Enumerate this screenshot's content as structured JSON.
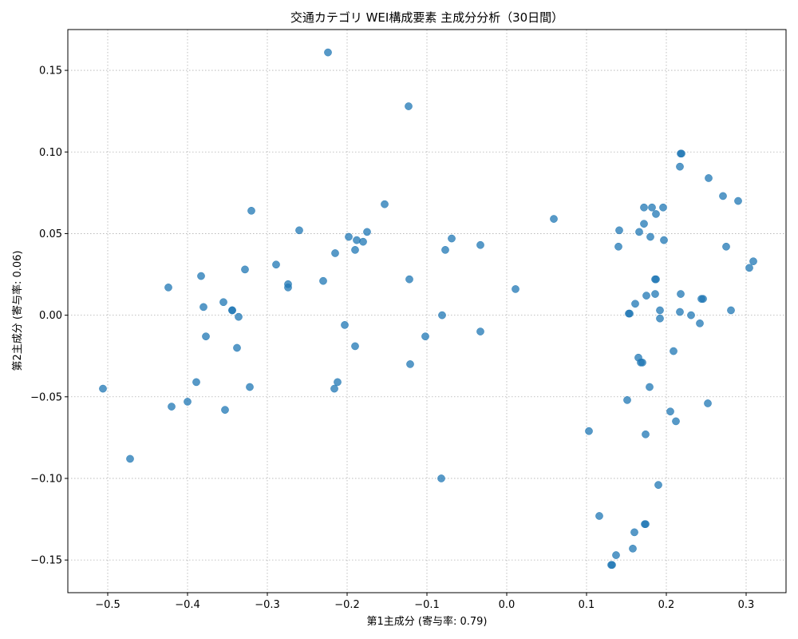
{
  "chart_data": {
    "type": "scatter",
    "title": "交通カテゴリ WEI構成要素 主成分分析（30日間）",
    "xlabel": "第1主成分 (寄与率: 0.79)",
    "ylabel": "第2主成分 (寄与率: 0.06)",
    "xlim": [
      -0.55,
      0.35
    ],
    "ylim": [
      -0.17,
      0.175
    ],
    "x_ticks": [
      -0.5,
      -0.4,
      -0.3,
      -0.2,
      -0.1,
      0.0,
      0.1,
      0.2,
      0.3
    ],
    "x_tick_labels": [
      "−0.5",
      "−0.4",
      "−0.3",
      "−0.2",
      "−0.1",
      "0.0",
      "0.1",
      "0.2",
      "0.3"
    ],
    "y_ticks": [
      -0.15,
      -0.1,
      -0.05,
      0.0,
      0.05,
      0.1,
      0.15
    ],
    "y_tick_labels": [
      "−0.15",
      "−0.10",
      "−0.05",
      "0.00",
      "0.05",
      "0.10",
      "0.15"
    ],
    "grid": true,
    "marker_color": "#1f77b4",
    "points": [
      [
        -0.224,
        0.161
      ],
      [
        -0.123,
        0.128
      ],
      [
        -0.32,
        0.064
      ],
      [
        -0.26,
        0.052
      ],
      [
        -0.289,
        0.031
      ],
      [
        -0.328,
        0.028
      ],
      [
        -0.383,
        0.024
      ],
      [
        -0.424,
        0.017
      ],
      [
        -0.274,
        0.019
      ],
      [
        -0.274,
        0.017
      ],
      [
        -0.23,
        0.021
      ],
      [
        -0.355,
        0.008
      ],
      [
        -0.38,
        0.005
      ],
      [
        -0.344,
        0.003
      ],
      [
        -0.344,
        0.003
      ],
      [
        -0.336,
        -0.001
      ],
      [
        -0.377,
        -0.013
      ],
      [
        -0.338,
        -0.02
      ],
      [
        -0.389,
        -0.041
      ],
      [
        -0.322,
        -0.044
      ],
      [
        -0.4,
        -0.053
      ],
      [
        -0.42,
        -0.056
      ],
      [
        -0.353,
        -0.058
      ],
      [
        -0.506,
        -0.045
      ],
      [
        -0.472,
        -0.088
      ],
      [
        -0.198,
        0.048
      ],
      [
        -0.188,
        0.046
      ],
      [
        -0.18,
        0.045
      ],
      [
        -0.175,
        0.051
      ],
      [
        -0.215,
        0.038
      ],
      [
        -0.19,
        0.04
      ],
      [
        -0.153,
        0.068
      ],
      [
        -0.122,
        0.022
      ],
      [
        -0.203,
        -0.006
      ],
      [
        -0.19,
        -0.019
      ],
      [
        -0.212,
        -0.041
      ],
      [
        -0.216,
        -0.045
      ],
      [
        -0.121,
        -0.03
      ],
      [
        -0.102,
        -0.013
      ],
      [
        -0.081,
        0.0
      ],
      [
        -0.077,
        0.04
      ],
      [
        -0.069,
        0.047
      ],
      [
        -0.033,
        0.043
      ],
      [
        -0.033,
        -0.01
      ],
      [
        -0.082,
        -0.1
      ],
      [
        0.011,
        0.016
      ],
      [
        0.059,
        0.059
      ],
      [
        0.103,
        -0.071
      ],
      [
        0.116,
        -0.123
      ],
      [
        0.131,
        -0.153
      ],
      [
        0.132,
        -0.153
      ],
      [
        0.137,
        -0.147
      ],
      [
        0.158,
        -0.143
      ],
      [
        0.16,
        -0.133
      ],
      [
        0.173,
        -0.128
      ],
      [
        0.174,
        -0.128
      ],
      [
        0.19,
        -0.104
      ],
      [
        0.174,
        -0.073
      ],
      [
        0.151,
        -0.052
      ],
      [
        0.179,
        -0.044
      ],
      [
        0.205,
        -0.059
      ],
      [
        0.212,
        -0.065
      ],
      [
        0.252,
        -0.054
      ],
      [
        0.165,
        -0.026
      ],
      [
        0.168,
        -0.029
      ],
      [
        0.17,
        -0.029
      ],
      [
        0.209,
        -0.022
      ],
      [
        0.153,
        0.001
      ],
      [
        0.154,
        0.001
      ],
      [
        0.161,
        0.007
      ],
      [
        0.175,
        0.012
      ],
      [
        0.186,
        0.013
      ],
      [
        0.192,
        0.003
      ],
      [
        0.192,
        -0.002
      ],
      [
        0.217,
        0.002
      ],
      [
        0.218,
        0.013
      ],
      [
        0.231,
        0.0
      ],
      [
        0.242,
        -0.005
      ],
      [
        0.244,
        0.01
      ],
      [
        0.246,
        0.01
      ],
      [
        0.281,
        0.003
      ],
      [
        0.186,
        0.022
      ],
      [
        0.187,
        0.022
      ],
      [
        0.14,
        0.042
      ],
      [
        0.141,
        0.052
      ],
      [
        0.166,
        0.051
      ],
      [
        0.172,
        0.056
      ],
      [
        0.18,
        0.048
      ],
      [
        0.197,
        0.046
      ],
      [
        0.172,
        0.066
      ],
      [
        0.182,
        0.066
      ],
      [
        0.187,
        0.062
      ],
      [
        0.196,
        0.066
      ],
      [
        0.217,
        0.091
      ],
      [
        0.218,
        0.099
      ],
      [
        0.219,
        0.099
      ],
      [
        0.253,
        0.084
      ],
      [
        0.271,
        0.073
      ],
      [
        0.29,
        0.07
      ],
      [
        0.275,
        0.042
      ],
      [
        0.304,
        0.029
      ],
      [
        0.309,
        0.033
      ]
    ]
  }
}
